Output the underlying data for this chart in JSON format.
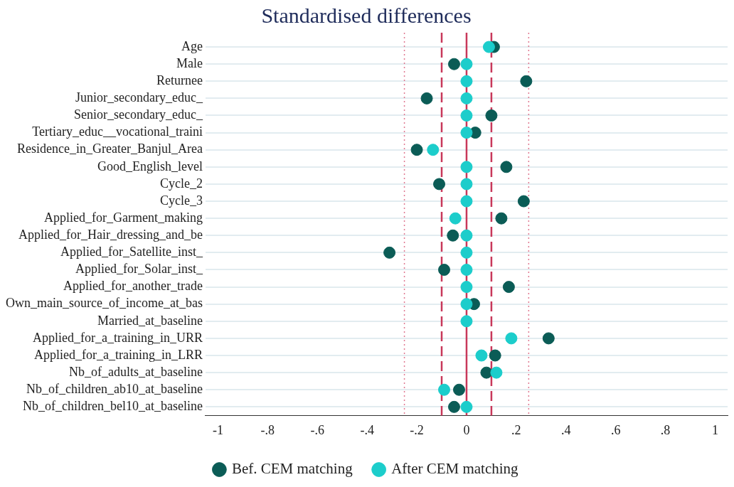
{
  "chart_data": {
    "type": "scatter",
    "orientation": "horizontal",
    "title": "Standardised differences",
    "categories": [
      "Age",
      "Male",
      "Returnee",
      "Junior_secondary_educ_",
      "Senior_secondary_educ_",
      "Tertiary_educ__vocational_traini",
      "Residence_in_Greater_Banjul_Area",
      "Good_English_level",
      "Cycle_2",
      "Cycle_3",
      "Applied_for_Garment_making",
      "Applied_for_Hair_dressing_and_be",
      "Applied_for_Satellite_inst_",
      "Applied_for_Solar_inst_",
      "Applied_for_another_trade",
      "Own_main_source_of_income_at_bas",
      "Married_at_baseline",
      "Applied_for_a_training_in_URR",
      "Applied_for_a_training_in_LRR",
      "Nb_of_adults_at_baseline",
      "Nb_of_children_ab10_at_baseline",
      "Nb_of_children_bel10_at_baseline"
    ],
    "series": [
      {
        "name": "Bef. CEM matching",
        "color": "#0b5c56",
        "values": [
          0.11,
          -0.05,
          0.24,
          -0.16,
          0.1,
          0.035,
          -0.2,
          0.16,
          -0.11,
          0.23,
          0.14,
          -0.055,
          -0.31,
          -0.09,
          0.17,
          0.03,
          null,
          0.33,
          0.115,
          0.08,
          -0.03,
          -0.05
        ]
      },
      {
        "name": "After CEM matching",
        "color": "#1ccdcb",
        "values": [
          0.09,
          0,
          0,
          0,
          0,
          0,
          -0.135,
          0,
          0,
          0,
          -0.045,
          0,
          0,
          0,
          0,
          0,
          0,
          0.18,
          0.06,
          0.12,
          -0.09,
          0
        ]
      }
    ],
    "xlim": [
      -1.05,
      1.05
    ],
    "xticks": [
      {
        "value": -1,
        "label": "-1"
      },
      {
        "value": -0.8,
        "label": "-.8"
      },
      {
        "value": -0.6,
        "label": "-.6"
      },
      {
        "value": -0.4,
        "label": "-.4"
      },
      {
        "value": -0.2,
        "label": "-.2"
      },
      {
        "value": 0,
        "label": "0"
      },
      {
        "value": 0.2,
        "label": ".2"
      },
      {
        "value": 0.4,
        "label": ".4"
      },
      {
        "value": 0.6,
        "label": ".6"
      },
      {
        "value": 0.8,
        "label": ".8"
      },
      {
        "value": 1,
        "label": "1"
      }
    ],
    "ref_lines": [
      {
        "axis": "x",
        "value": 0,
        "color": "#c8385a",
        "line_style": "solid"
      },
      {
        "axis": "x",
        "value": -0.1,
        "color": "#c8385a",
        "line_style": "dashed"
      },
      {
        "axis": "x",
        "value": 0.1,
        "color": "#c8385a",
        "line_style": "dashed"
      },
      {
        "axis": "x",
        "value": -0.25,
        "color": "#e07890",
        "line_style": "dotted"
      },
      {
        "axis": "x",
        "value": 0.25,
        "color": "#e07890",
        "line_style": "dotted"
      }
    ],
    "grid": "y",
    "legend": "bottom",
    "marker": "circle"
  }
}
